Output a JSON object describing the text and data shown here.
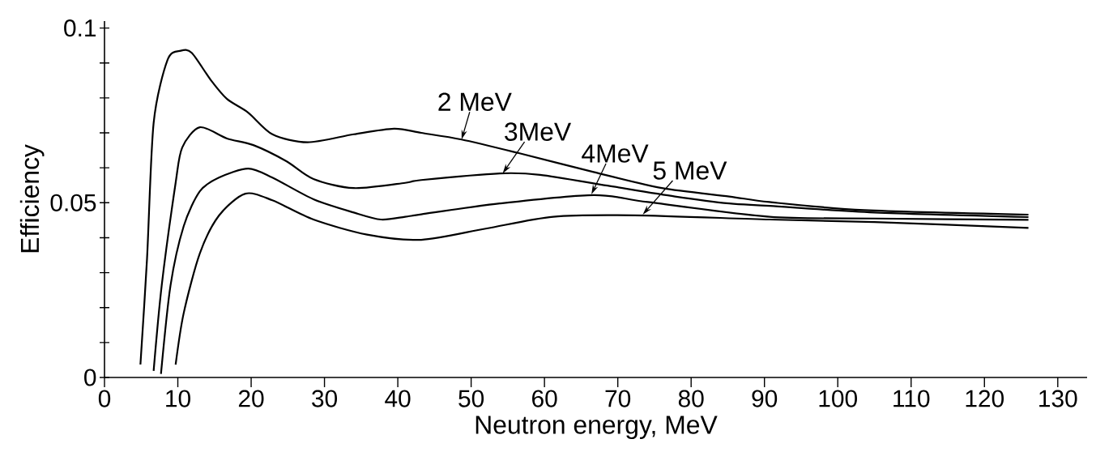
{
  "chart_data": {
    "type": "line",
    "xlabel": "Neutron energy, MeV",
    "ylabel": "Efficiency",
    "xlim": [
      0,
      134
    ],
    "ylim": [
      0,
      0.102
    ],
    "xticks": [
      0,
      10,
      20,
      30,
      40,
      50,
      60,
      70,
      80,
      90,
      100,
      110,
      120,
      130
    ],
    "yticks": [
      0,
      {
        "value": 0.01,
        "label": null
      },
      {
        "value": 0.02,
        "label": null
      },
      {
        "value": 0.03,
        "label": null
      },
      {
        "value": 0.04,
        "label": null
      },
      0.05,
      {
        "value": 0.06,
        "label": null
      },
      {
        "value": 0.07,
        "label": null
      },
      {
        "value": 0.08,
        "label": null
      },
      {
        "value": 0.09,
        "label": null
      },
      0.1
    ],
    "grid": false,
    "marker": "none",
    "line_style": "solid",
    "series": [
      {
        "color": "#000000",
        "x": [
          4.9,
          5.8,
          6.7,
          8.6,
          10.4,
          11.9,
          14.5,
          16.7,
          19.6,
          22.9,
          27.7,
          34.0,
          39.5,
          43.2,
          48.7,
          56.5,
          66.7,
          76,
          85.2,
          90.7,
          103.6,
          126
        ],
        "values": [
          0.0037,
          0.034,
          0.0728,
          0.0909,
          0.0935,
          0.0929,
          0.0851,
          0.0797,
          0.0758,
          0.0696,
          0.0673,
          0.0696,
          0.0712,
          0.07,
          0.0681,
          0.0642,
          0.0588,
          0.0542,
          0.0518,
          0.0502,
          0.0479,
          0.0466
        ]
      },
      {
        "color": "#000000",
        "x": [
          6.7,
          7.8,
          9.7,
          10.6,
          13.0,
          16.7,
          20.3,
          24.8,
          28.5,
          34.0,
          41,
          43.2,
          53.9,
          59.4,
          68.6,
          77.8,
          85.2,
          90.7,
          105,
          126
        ],
        "values": [
          0.0019,
          0.0263,
          0.0557,
          0.0658,
          0.0716,
          0.0684,
          0.0665,
          0.0619,
          0.0568,
          0.0542,
          0.0557,
          0.0565,
          0.0584,
          0.058,
          0.0549,
          0.0518,
          0.0498,
          0.0491,
          0.0472,
          0.0459
        ]
      },
      {
        "color": "#000000",
        "x": [
          7.7,
          9.0,
          10.8,
          13.0,
          15.6,
          19.6,
          22.9,
          28.5,
          34.0,
          37.7,
          41,
          43.2,
          53.9,
          66.7,
          74.1,
          90.7,
          105,
          126
        ],
        "values": [
          0.001,
          0.0263,
          0.0433,
          0.0533,
          0.0572,
          0.0598,
          0.0572,
          0.051,
          0.0472,
          0.0452,
          0.046,
          0.0467,
          0.0498,
          0.0522,
          0.0502,
          0.046,
          0.0455,
          0.0451
        ]
      },
      {
        "color": "#000000",
        "x": [
          9.7,
          10.8,
          13.0,
          15.6,
          19.2,
          22.9,
          28.5,
          35.8,
          43.2,
          52,
          61.2,
          72.3,
          90.7,
          105,
          126
        ],
        "values": [
          0.0037,
          0.0184,
          0.0355,
          0.0463,
          0.0526,
          0.0507,
          0.0452,
          0.0409,
          0.0394,
          0.0426,
          0.046,
          0.0464,
          0.0452,
          0.0445,
          0.0428
        ]
      }
    ],
    "annotations": [
      {
        "text": "2 MeV",
        "x": 48.7,
        "y": 0.0681
      },
      {
        "text": "3MeV",
        "x": 54.3,
        "y": 0.0584
      },
      {
        "text": "4MeV",
        "x": 66.4,
        "y": 0.0524
      },
      {
        "text": "5 MeV",
        "x": 73.4,
        "y": 0.0466
      }
    ]
  }
}
